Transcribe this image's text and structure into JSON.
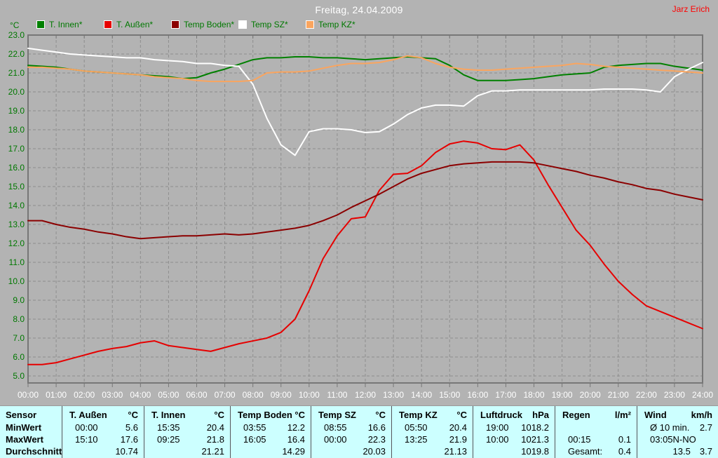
{
  "header": {
    "author_label": "Jarz Erich"
  },
  "chart_data": {
    "type": "line",
    "title": "Freitag, 24.04.2009",
    "ylabel": "°C",
    "xlabel": "",
    "ylim": [
      5.0,
      23.0
    ],
    "ytick_step": 1.0,
    "xlim_hours": [
      0,
      24
    ],
    "x_step_hours": 0.5,
    "grid": true,
    "legend_position": "top",
    "xtick_labels": [
      "00:00",
      "01:00",
      "02:00",
      "03:00",
      "04:00",
      "05:00",
      "06:00",
      "07:00",
      "08:00",
      "09:00",
      "10:00",
      "11:00",
      "12:00",
      "13:00",
      "14:00",
      "15:00",
      "16:00",
      "17:00",
      "18:00",
      "19:00",
      "20:00",
      "21:00",
      "22:00",
      "23:00",
      "24:00"
    ],
    "series": [
      {
        "name": "T. Innen*",
        "color": "#008000",
        "values": [
          21.4,
          21.35,
          21.3,
          21.2,
          21.1,
          21.05,
          21.0,
          20.95,
          20.9,
          20.85,
          20.8,
          20.7,
          20.75,
          21.0,
          21.2,
          21.45,
          21.7,
          21.8,
          21.8,
          21.85,
          21.85,
          21.8,
          21.8,
          21.75,
          21.7,
          21.75,
          21.8,
          21.85,
          21.8,
          21.75,
          21.4,
          20.9,
          20.6,
          20.6,
          20.6,
          20.65,
          20.7,
          20.8,
          20.9,
          20.95,
          21.0,
          21.3,
          21.4,
          21.45,
          21.5,
          21.5,
          21.35,
          21.25,
          21.15
        ]
      },
      {
        "name": "T. Außen*",
        "color": "#e60000",
        "values": [
          5.6,
          5.6,
          5.7,
          5.9,
          6.1,
          6.3,
          6.45,
          6.55,
          6.75,
          6.85,
          6.6,
          6.5,
          6.4,
          6.3,
          6.5,
          6.7,
          6.85,
          7.0,
          7.3,
          8.0,
          9.5,
          11.2,
          12.4,
          13.3,
          13.4,
          14.8,
          15.65,
          15.7,
          16.1,
          16.8,
          17.25,
          17.4,
          17.3,
          17.0,
          16.95,
          17.2,
          16.4,
          15.1,
          13.9,
          12.7,
          11.9,
          10.9,
          10.0,
          9.3,
          8.7,
          8.4,
          8.1,
          7.8,
          7.5
        ]
      },
      {
        "name": "Temp Boden*",
        "color": "#8b0000",
        "values": [
          13.2,
          13.2,
          13.0,
          12.85,
          12.75,
          12.6,
          12.5,
          12.35,
          12.25,
          12.3,
          12.35,
          12.4,
          12.4,
          12.45,
          12.5,
          12.45,
          12.5,
          12.6,
          12.7,
          12.8,
          12.95,
          13.2,
          13.5,
          13.9,
          14.25,
          14.6,
          15.0,
          15.4,
          15.7,
          15.9,
          16.1,
          16.2,
          16.25,
          16.3,
          16.3,
          16.3,
          16.25,
          16.1,
          15.95,
          15.8,
          15.6,
          15.45,
          15.25,
          15.1,
          14.9,
          14.8,
          14.6,
          14.45,
          14.3
        ]
      },
      {
        "name": "Temp SZ*",
        "color": "#ffffff",
        "values": [
          22.3,
          22.2,
          22.1,
          22.0,
          21.95,
          21.9,
          21.85,
          21.8,
          21.8,
          21.7,
          21.65,
          21.6,
          21.5,
          21.5,
          21.4,
          21.35,
          20.4,
          18.6,
          17.2,
          16.65,
          17.9,
          18.05,
          18.05,
          18.0,
          17.85,
          17.9,
          18.3,
          18.8,
          19.15,
          19.3,
          19.3,
          19.25,
          19.8,
          20.05,
          20.05,
          20.1,
          20.1,
          20.1,
          20.1,
          20.1,
          20.1,
          20.15,
          20.15,
          20.15,
          20.1,
          20.0,
          20.8,
          21.2,
          21.55
        ]
      },
      {
        "name": "Temp KZ*",
        "color": "#faa55f",
        "values": [
          21.3,
          21.3,
          21.25,
          21.2,
          21.1,
          21.05,
          21.0,
          20.95,
          20.9,
          20.8,
          20.75,
          20.7,
          20.6,
          20.55,
          20.55,
          20.55,
          20.6,
          21.0,
          21.05,
          21.05,
          21.1,
          21.25,
          21.4,
          21.5,
          21.5,
          21.55,
          21.7,
          21.9,
          21.8,
          21.5,
          21.3,
          21.2,
          21.15,
          21.15,
          21.2,
          21.25,
          21.3,
          21.35,
          21.4,
          21.5,
          21.45,
          21.35,
          21.3,
          21.25,
          21.2,
          21.15,
          21.1,
          21.05,
          21.0
        ]
      }
    ]
  },
  "table": {
    "sensor_header": "Sensor",
    "row_labels": [
      "MinWert",
      "MaxWert",
      "Durchschnitt"
    ],
    "columns": [
      {
        "name": "T. Außen",
        "unit": "°C",
        "rows": [
          {
            "t": "00:00",
            "v": "5.6"
          },
          {
            "t": "15:10",
            "v": "17.6"
          },
          {
            "t": "",
            "v": "10.74"
          }
        ]
      },
      {
        "name": "T. Innen",
        "unit": "°C",
        "rows": [
          {
            "t": "15:35",
            "v": "20.4"
          },
          {
            "t": "09:25",
            "v": "21.8"
          },
          {
            "t": "",
            "v": "21.21"
          }
        ]
      },
      {
        "name": "Temp Boden",
        "unit": "°C",
        "rows": [
          {
            "t": "03:55",
            "v": "12.2"
          },
          {
            "t": "16:05",
            "v": "16.4"
          },
          {
            "t": "",
            "v": "14.29"
          }
        ]
      },
      {
        "name": "Temp SZ",
        "unit": "°C",
        "rows": [
          {
            "t": "08:55",
            "v": "16.6"
          },
          {
            "t": "00:00",
            "v": "22.3"
          },
          {
            "t": "",
            "v": "20.03"
          }
        ]
      },
      {
        "name": "Temp KZ",
        "unit": "°C",
        "rows": [
          {
            "t": "05:50",
            "v": "20.4"
          },
          {
            "t": "13:25",
            "v": "21.9"
          },
          {
            "t": "",
            "v": "21.13"
          }
        ]
      },
      {
        "name": "Luftdruck",
        "unit": "hPa",
        "rows": [
          {
            "t": "19:00",
            "v": "1018.2"
          },
          {
            "t": "10:00",
            "v": "1021.3"
          },
          {
            "t": "",
            "v": "1019.8"
          }
        ]
      },
      {
        "name": "Regen",
        "unit": "l/m²",
        "rows": [
          {
            "t": "",
            "v": ""
          },
          {
            "t": "00:15",
            "v": "0.1"
          },
          {
            "t": "Gesamt:",
            "v": "0.4"
          }
        ]
      },
      {
        "name": "Wind",
        "unit": "km/h",
        "rows": [
          {
            "t": "Ø 10 min.",
            "v": "2.7"
          },
          {
            "t": "03:05",
            "v": "N-NO 13.5"
          },
          {
            "t": "",
            "v": "3.7"
          }
        ]
      }
    ]
  }
}
